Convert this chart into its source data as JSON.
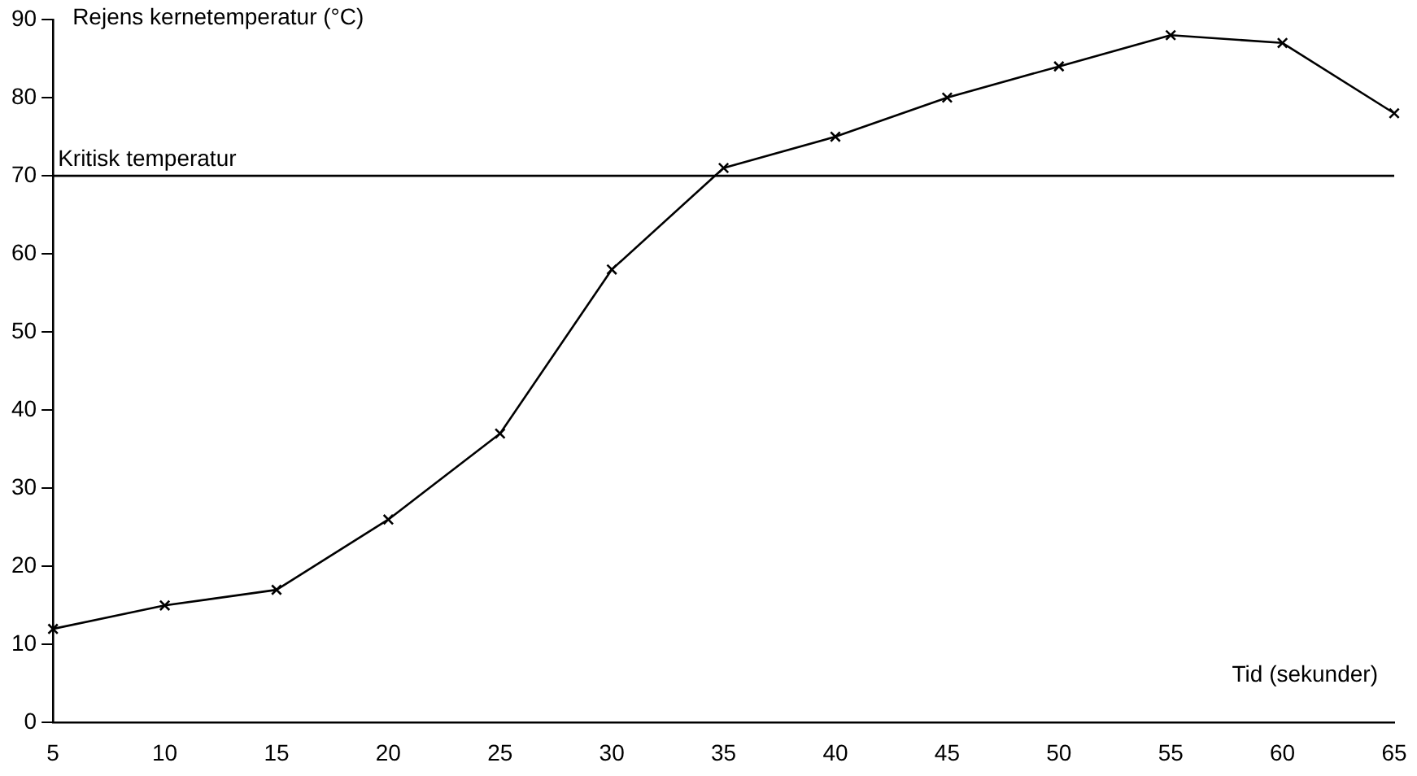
{
  "chart_data": {
    "type": "line",
    "ylabel": "Rejens kernetemperatur (°C)",
    "xlabel": "Tid (sekunder)",
    "x": [
      5,
      10,
      15,
      20,
      25,
      30,
      35,
      40,
      45,
      50,
      55,
      60,
      65
    ],
    "values": [
      12,
      15,
      17,
      26,
      37,
      58,
      71,
      75,
      80,
      84,
      88,
      87,
      78
    ],
    "color": "#000000",
    "marker": "cross",
    "line_style": "solid",
    "grid": false,
    "legend": false,
    "xlim": [
      5,
      65
    ],
    "xticks": [
      5,
      10,
      15,
      20,
      25,
      30,
      35,
      40,
      45,
      50,
      55,
      60,
      65
    ],
    "ylim": [
      0,
      90
    ],
    "yticks": [
      0,
      10,
      20,
      30,
      40,
      50,
      60,
      70,
      80,
      90
    ],
    "ref_lines": [
      {
        "axis": "y",
        "value": 70,
        "label": "Kritisk temperatur",
        "color": "#000000"
      }
    ]
  }
}
